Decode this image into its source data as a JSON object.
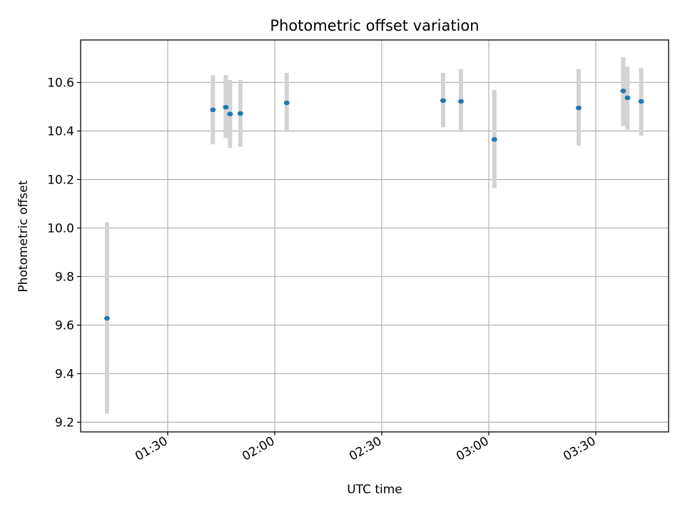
{
  "chart_data": {
    "type": "scatter",
    "title": "Photometric offset variation",
    "xlabel": "UTC time",
    "ylabel": "Photometric offset",
    "xlim": [
      "01:05:36",
      "03:50:24"
    ],
    "ylim": [
      9.16,
      10.775
    ],
    "xticks": [
      "01:30",
      "02:00",
      "02:30",
      "03:00",
      "03:30"
    ],
    "yticks": [
      "9.2",
      "9.4",
      "9.6",
      "9.8",
      "10.0",
      "10.2",
      "10.4",
      "10.6"
    ],
    "grid": true,
    "colors": {
      "point": "#1f77b4",
      "errorbar": "#d3d3d3",
      "grid": "#b0b0b0"
    },
    "points": [
      {
        "x": "01:13:00",
        "y": 9.628,
        "ylow": 9.235,
        "yhigh": 10.025
      },
      {
        "x": "01:42:40",
        "y": 10.487,
        "ylow": 10.345,
        "yhigh": 10.63
      },
      {
        "x": "01:46:17",
        "y": 10.498,
        "ylow": 10.37,
        "yhigh": 10.63
      },
      {
        "x": "01:47:29",
        "y": 10.47,
        "ylow": 10.33,
        "yhigh": 10.61
      },
      {
        "x": "01:50:22",
        "y": 10.472,
        "ylow": 10.335,
        "yhigh": 10.61
      },
      {
        "x": "02:03:22",
        "y": 10.516,
        "ylow": 10.395,
        "yhigh": 10.64
      },
      {
        "x": "02:47:12",
        "y": 10.525,
        "ylow": 10.415,
        "yhigh": 10.64
      },
      {
        "x": "02:52:12",
        "y": 10.522,
        "ylow": 10.395,
        "yhigh": 10.655
      },
      {
        "x": "03:01:34",
        "y": 10.365,
        "ylow": 10.165,
        "yhigh": 10.57
      },
      {
        "x": "03:25:12",
        "y": 10.495,
        "ylow": 10.34,
        "yhigh": 10.655
      },
      {
        "x": "03:37:41",
        "y": 10.565,
        "ylow": 10.42,
        "yhigh": 10.705
      },
      {
        "x": "03:38:53",
        "y": 10.537,
        "ylow": 10.405,
        "yhigh": 10.665
      },
      {
        "x": "03:42:43",
        "y": 10.522,
        "ylow": 10.38,
        "yhigh": 10.66
      }
    ]
  }
}
